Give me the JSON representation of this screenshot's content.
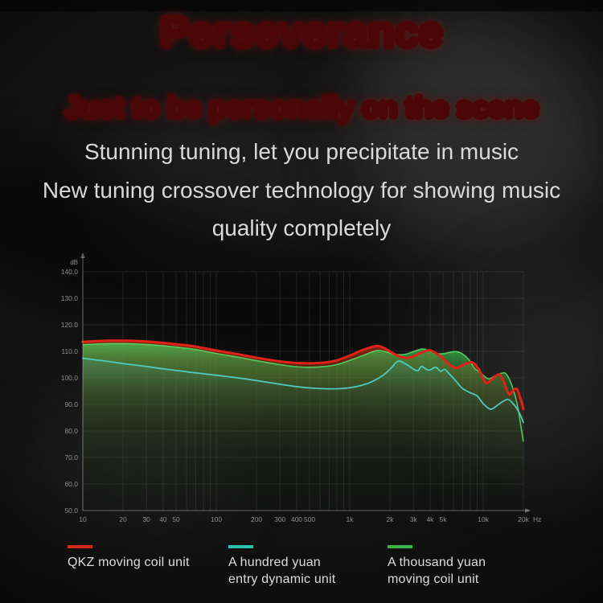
{
  "header": {
    "title": "Perseverance",
    "subtitle": "Just to be personally on the scene",
    "lines": [
      "Stunning tuning, let you precipitate in music",
      "New tuning crossover technology for showing music",
      "quality completely"
    ]
  },
  "colors": {
    "red_series": "#e02318",
    "cyan_series": "#4fcabc",
    "green_series": "#3db954",
    "grid": "rgba(195,195,195,0.13)",
    "axis": "rgba(210,210,210,0.42)",
    "tick_text": "#8f8f8f"
  },
  "chart_data": {
    "type": "line",
    "title": "",
    "x_axis": {
      "unit": "Hz",
      "scale": "log",
      "min": 10,
      "max": 20000,
      "ticks": [
        [
          10,
          "10"
        ],
        [
          20,
          "20"
        ],
        [
          30,
          "30"
        ],
        [
          40,
          "40"
        ],
        [
          50,
          "50"
        ],
        [
          100,
          "100"
        ],
        [
          200,
          "200"
        ],
        [
          300,
          "300"
        ],
        [
          400,
          "400"
        ],
        [
          500,
          "500"
        ],
        [
          1000,
          "1k"
        ],
        [
          2000,
          "2k"
        ],
        [
          3000,
          "3k"
        ],
        [
          4000,
          "4k"
        ],
        [
          5000,
          "5k"
        ],
        [
          10000,
          "10k"
        ],
        [
          20000,
          "20k"
        ]
      ]
    },
    "y_axis": {
      "unit": "dB",
      "min": 50,
      "max": 140,
      "tick_step": 10,
      "ticks": [
        "140.0",
        "130.0",
        "120.0",
        "110.0",
        "100.0",
        "90.0",
        "80.0",
        "70.0",
        "60.0",
        "50.0"
      ]
    },
    "grid": true,
    "legend_position": "bottom",
    "series": [
      {
        "name": "QKZ moving coil unit",
        "color": "#e02318",
        "points": [
          [
            10,
            113.6
          ],
          [
            15,
            114
          ],
          [
            22,
            114
          ],
          [
            30,
            113.7
          ],
          [
            40,
            113.2
          ],
          [
            50,
            112.7
          ],
          [
            70,
            111.8
          ],
          [
            100,
            110.3
          ],
          [
            150,
            108.8
          ],
          [
            200,
            107.6
          ],
          [
            300,
            106.2
          ],
          [
            400,
            105.6
          ],
          [
            500,
            105.5
          ],
          [
            650,
            105.8
          ],
          [
            800,
            106.6
          ],
          [
            1000,
            108.4
          ],
          [
            1250,
            110.5
          ],
          [
            1600,
            112
          ],
          [
            1850,
            111
          ],
          [
            2100,
            109.3
          ],
          [
            2450,
            107.8
          ],
          [
            2800,
            107.6
          ],
          [
            3200,
            108.8
          ],
          [
            3700,
            110.1
          ],
          [
            4000,
            110.4
          ],
          [
            4400,
            109.4
          ],
          [
            5000,
            107.3
          ],
          [
            5600,
            105
          ],
          [
            6300,
            103.7
          ],
          [
            7000,
            104.8
          ],
          [
            8200,
            105.9
          ],
          [
            9200,
            103.5
          ],
          [
            10000,
            99.8
          ],
          [
            10600,
            98
          ],
          [
            11500,
            99.3
          ],
          [
            12500,
            100.8
          ],
          [
            13300,
            101.2
          ],
          [
            14300,
            98.5
          ],
          [
            15000,
            95.5
          ],
          [
            15700,
            93.7
          ],
          [
            16500,
            94.8
          ],
          [
            17800,
            95.9
          ],
          [
            18800,
            93
          ],
          [
            19500,
            90.5
          ],
          [
            20000,
            88.3
          ]
        ]
      },
      {
        "name": "A hundred yuan entry dynamic unit",
        "color": "#4fcabc",
        "points": [
          [
            10,
            107.4
          ],
          [
            15,
            106.3
          ],
          [
            20,
            105.4
          ],
          [
            30,
            104.3
          ],
          [
            40,
            103.4
          ],
          [
            50,
            102.8
          ],
          [
            70,
            101.9
          ],
          [
            100,
            101
          ],
          [
            150,
            99.9
          ],
          [
            200,
            99
          ],
          [
            300,
            97.6
          ],
          [
            400,
            96.7
          ],
          [
            500,
            96.2
          ],
          [
            650,
            95.9
          ],
          [
            800,
            95.9
          ],
          [
            1000,
            96.3
          ],
          [
            1250,
            97.3
          ],
          [
            1500,
            98.8
          ],
          [
            1800,
            101.2
          ],
          [
            2050,
            103.8
          ],
          [
            2300,
            106.3
          ],
          [
            2600,
            105.4
          ],
          [
            3000,
            103.3
          ],
          [
            3250,
            102.7
          ],
          [
            3450,
            104.3
          ],
          [
            3900,
            102.9
          ],
          [
            4400,
            104
          ],
          [
            4800,
            102.5
          ],
          [
            5150,
            103.2
          ],
          [
            5600,
            101.4
          ],
          [
            6200,
            99
          ],
          [
            7000,
            96
          ],
          [
            8000,
            94.4
          ],
          [
            9000,
            93.2
          ],
          [
            10000,
            90.3
          ],
          [
            11300,
            88.2
          ],
          [
            12500,
            89.3
          ],
          [
            13700,
            90.8
          ],
          [
            15300,
            91.9
          ],
          [
            16500,
            90.6
          ],
          [
            17800,
            88.6
          ],
          [
            19000,
            86
          ],
          [
            20000,
            83.2
          ]
        ]
      },
      {
        "name": "A thousand yuan moving coil unit",
        "color": "#3db954",
        "points": [
          [
            10,
            112.5
          ],
          [
            15,
            112.9
          ],
          [
            22,
            112.9
          ],
          [
            30,
            112.6
          ],
          [
            40,
            112.1
          ],
          [
            50,
            111.6
          ],
          [
            70,
            110.7
          ],
          [
            100,
            109.2
          ],
          [
            150,
            107.7
          ],
          [
            200,
            106.5
          ],
          [
            300,
            105
          ],
          [
            400,
            104.2
          ],
          [
            500,
            104
          ],
          [
            650,
            104.3
          ],
          [
            800,
            105
          ],
          [
            1000,
            106.6
          ],
          [
            1250,
            108.4
          ],
          [
            1600,
            110.3
          ],
          [
            1900,
            109.7
          ],
          [
            2200,
            108.8
          ],
          [
            2600,
            108.9
          ],
          [
            3000,
            109.9
          ],
          [
            3500,
            110.9
          ],
          [
            4000,
            110.1
          ],
          [
            4500,
            109.2
          ],
          [
            5000,
            109.1
          ],
          [
            5600,
            109.6
          ],
          [
            6300,
            109.9
          ],
          [
            7000,
            109
          ],
          [
            7800,
            106.9
          ],
          [
            8600,
            103.6
          ],
          [
            9300,
            102.4
          ],
          [
            10200,
            100.6
          ],
          [
            11000,
            99.6
          ],
          [
            12000,
            100.5
          ],
          [
            13000,
            101.3
          ],
          [
            14500,
            101.9
          ],
          [
            15500,
            100
          ],
          [
            16300,
            97.5
          ],
          [
            17300,
            93.5
          ],
          [
            18300,
            88
          ],
          [
            19200,
            81.5
          ],
          [
            20000,
            76
          ]
        ]
      }
    ]
  },
  "legend": {
    "items": [
      {
        "color": "#d5281c",
        "lines": [
          "QKZ moving coil unit",
          ""
        ]
      },
      {
        "color": "#2bbfae",
        "lines": [
          "A hundred yuan",
          "entry dynamic unit"
        ]
      },
      {
        "color": "#3db24b",
        "lines": [
          "A thousand yuan",
          "moving coil unit"
        ]
      }
    ]
  }
}
